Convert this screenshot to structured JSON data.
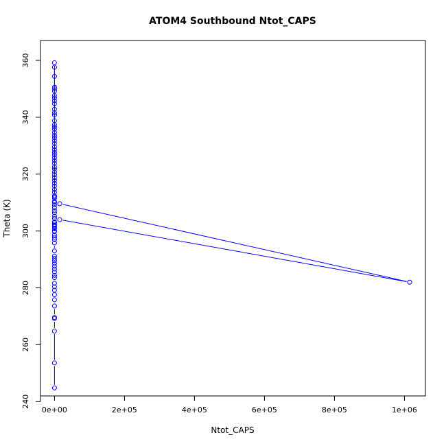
{
  "chart_data": {
    "type": "scatter",
    "title": "ATOM4 Southbound Ntot_CAPS",
    "xlabel": "Ntot_CAPS",
    "ylabel": "Theta (K)",
    "xlim": [
      -40000,
      1060000
    ],
    "ylim": [
      242,
      367
    ],
    "x_ticks": [
      0,
      200000,
      400000,
      600000,
      800000,
      1000000
    ],
    "x_tick_labels": [
      "0e+00",
      "2e+05",
      "4e+05",
      "6e+05",
      "8e+05",
      "1e+06"
    ],
    "y_ticks": [
      240,
      260,
      280,
      300,
      320,
      340,
      360
    ],
    "y_tick_labels": [
      "240",
      "260",
      "280",
      "300",
      "320",
      "340",
      "360"
    ],
    "grid": false,
    "legend": "none",
    "series_color": "#0000ff",
    "series": [
      {
        "style": "points+lines",
        "x": [
          0,
          0,
          0,
          0,
          0,
          0,
          0,
          0,
          0,
          0,
          0,
          0,
          0,
          0,
          0,
          0,
          0,
          0,
          0,
          0,
          0,
          0,
          0,
          0,
          0,
          0,
          0,
          0,
          0,
          0,
          0,
          0,
          0,
          0,
          0,
          0,
          0,
          0,
          0,
          0,
          0,
          0,
          0,
          0,
          0,
          0,
          0,
          0,
          0,
          0,
          0,
          0,
          0,
          0,
          0,
          0,
          0,
          0,
          0,
          0,
          0,
          0,
          0,
          0,
          0,
          0,
          0,
          0,
          0,
          0,
          0,
          0,
          0,
          0,
          0,
          0,
          0,
          0,
          0,
          0,
          15000,
          1015000,
          15000,
          0,
          0,
          0,
          0
        ],
        "y": [
          244.8,
          253.6,
          264.8,
          269.2,
          269.6,
          273.6,
          275.8,
          277.6,
          279.2,
          280.4,
          281.6,
          283.6,
          284.4,
          285.6,
          286.6,
          287.6,
          288.6,
          289.6,
          290.4,
          291.2,
          293.0,
          295.8,
          297.0,
          297.8,
          298.6,
          299.8,
          300.8,
          301.6,
          302.4,
          303.2,
          304.4,
          305.2,
          306.4,
          307.2,
          308.2,
          309.2,
          310.4,
          311.6,
          312.4,
          313.6,
          314.6,
          315.8,
          316.8,
          317.8,
          318.8,
          319.8,
          320.8,
          321.8,
          322.6,
          323.8,
          324.8,
          325.8,
          326.8,
          327.6,
          328.6,
          329.6,
          330.8,
          331.8,
          332.8,
          333.6,
          334.6,
          335.8,
          336.6,
          337.4,
          338.8,
          340.8,
          341.6,
          342.8,
          344.8,
          345.8,
          346.8,
          347.6,
          349.2,
          350.0,
          350.6,
          354.4,
          357.6,
          359.2,
          312.0,
          310.0,
          309.6,
          282.0,
          304.0,
          303.0,
          302.0,
          301.0,
          300.0
        ]
      }
    ]
  }
}
